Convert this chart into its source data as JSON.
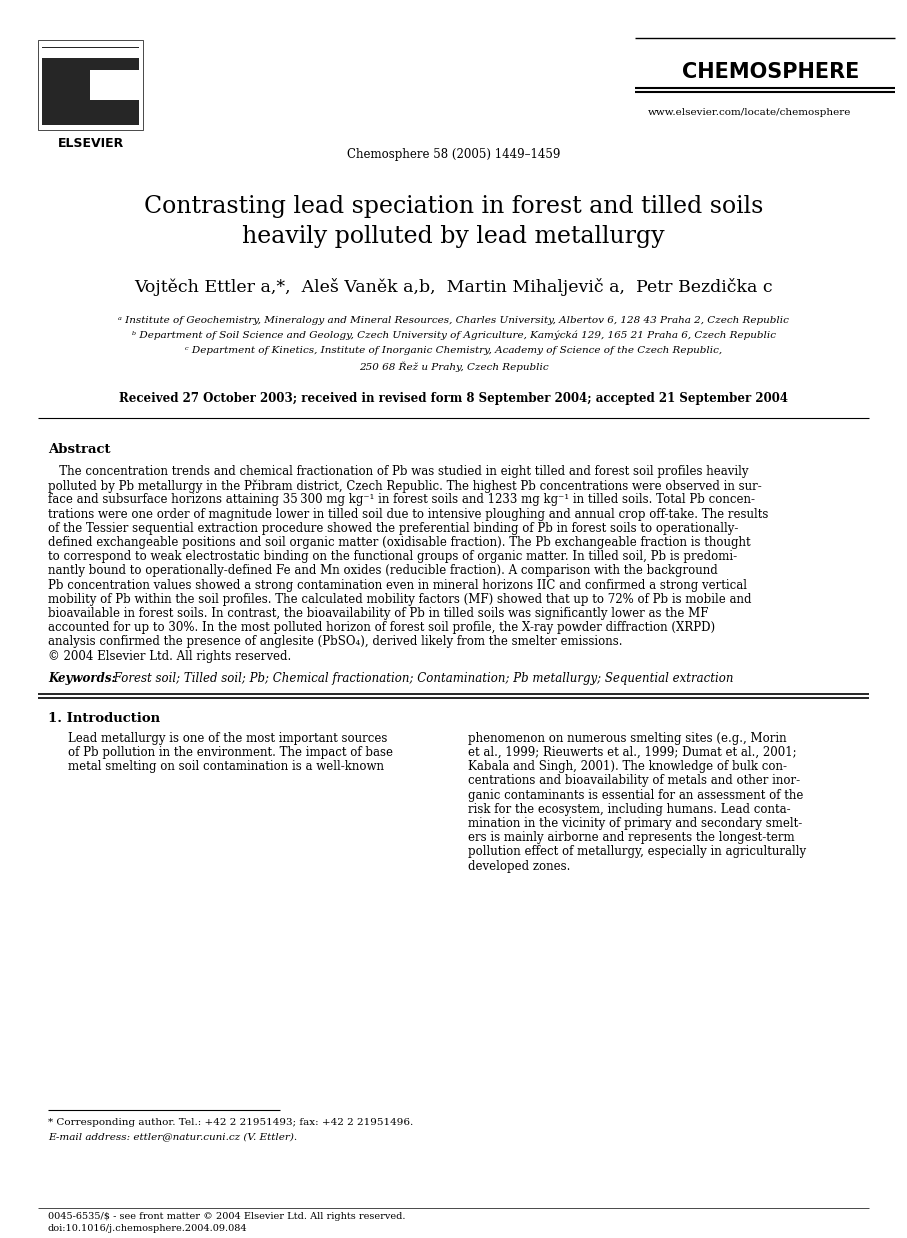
{
  "journal_name": "CHEMOSPHERE",
  "journal_ref": "Chemosphere 58 (2005) 1449–1459",
  "journal_url": "www.elsevier.com/locate/chemosphere",
  "title_line1": "Contrasting lead speciation in forest and tilled soils",
  "title_line2": "heavily polluted by lead metallurgy",
  "authors": "Vojtěch Ettler a,*,  Aleš Vaněk a,b,  Martin Mihaljevič a,  Petr Bezdička c",
  "affil_a": "ᵃ Institute of Geochemistry, Mineralogy and Mineral Resources, Charles University, Albertov 6, 128 43 Praha 2, Czech Republic",
  "affil_b": "ᵇ Department of Soil Science and Geology, Czech University of Agriculture, Kamýcká 129, 165 21 Praha 6, Czech Republic",
  "affil_c1": "ᶜ Department of Kinetics, Institute of Inorganic Chemistry, Academy of Science of the Czech Republic,",
  "affil_c2": "250 68 Řež u Prahy, Czech Republic",
  "received": "Received 27 October 2003; received in revised form 8 September 2004; accepted 21 September 2004",
  "abstract_heading": "Abstract",
  "keywords_label": "Keywords:",
  "keywords_text": " Forest soil; Tilled soil; Pb; Chemical fractionation; Contamination; Pb metallurgy; Sequential extraction",
  "section1_heading": "1. Introduction",
  "footnote_corr": "* Corresponding author. Tel.: +42 2 21951493; fax: +42 2 21951496.",
  "footnote_email": "E-mail address: ettler@natur.cuni.cz (V. Ettler).",
  "footer_issn": "0045-6535/$ - see front matter © 2004 Elsevier Ltd. All rights reserved.",
  "footer_doi": "doi:10.1016/j.chemosphere.2004.09.084",
  "bg_color": "#ffffff",
  "text_color": "#000000",
  "abstract_lines": [
    "   The concentration trends and chemical fractionation of Pb was studied in eight tilled and forest soil profiles heavily",
    "polluted by Pb metallurgy in the Přibram district, Czech Republic. The highest Pb concentrations were observed in sur-",
    "face and subsurface horizons attaining 35 300 mg kg⁻¹ in forest soils and 1233 mg kg⁻¹ in tilled soils. Total Pb concen-",
    "trations were one order of magnitude lower in tilled soil due to intensive ploughing and annual crop off-take. The results",
    "of the Tessier sequential extraction procedure showed the preferential binding of Pb in forest soils to operationally-",
    "defined exchangeable positions and soil organic matter (oxidisable fraction). The Pb exchangeable fraction is thought",
    "to correspond to weak electrostatic binding on the functional groups of organic matter. In tilled soil, Pb is predomi-",
    "nantly bound to operationally-defined Fe and Mn oxides (reducible fraction). A comparison with the background",
    "Pb concentration values showed a strong contamination even in mineral horizons IIC and confirmed a strong vertical",
    "mobility of Pb within the soil profiles. The calculated mobility factors (MF) showed that up to 72% of Pb is mobile and",
    "bioavailable in forest soils. In contrast, the bioavailability of Pb in tilled soils was significantly lower as the MF",
    "accounted for up to 30%. In the most polluted horizon of forest soil profile, the X-ray powder diffraction (XRPD)",
    "analysis confirmed the presence of anglesite (PbSO₄), derived likely from the smelter emissions.",
    "© 2004 Elsevier Ltd. All rights reserved."
  ],
  "col1_lines": [
    "Lead metallurgy is one of the most important sources",
    "of Pb pollution in the environment. The impact of base",
    "metal smelting on soil contamination is a well-known"
  ],
  "col2_lines": [
    "phenomenon on numerous smelting sites (e.g., Morin",
    "et al., 1999; Rieuwerts et al., 1999; Dumat et al., 2001;",
    "Kabala and Singh, 2001). The knowledge of bulk con-",
    "centrations and bioavailability of metals and other inor-",
    "ganic contaminants is essential for an assessment of the",
    "risk for the ecosystem, including humans. Lead conta-",
    "mination in the vicinity of primary and secondary smelt-",
    "ers is mainly airborne and represents the longest-term",
    "pollution effect of metallurgy, especially in agriculturally",
    "developed zones."
  ]
}
